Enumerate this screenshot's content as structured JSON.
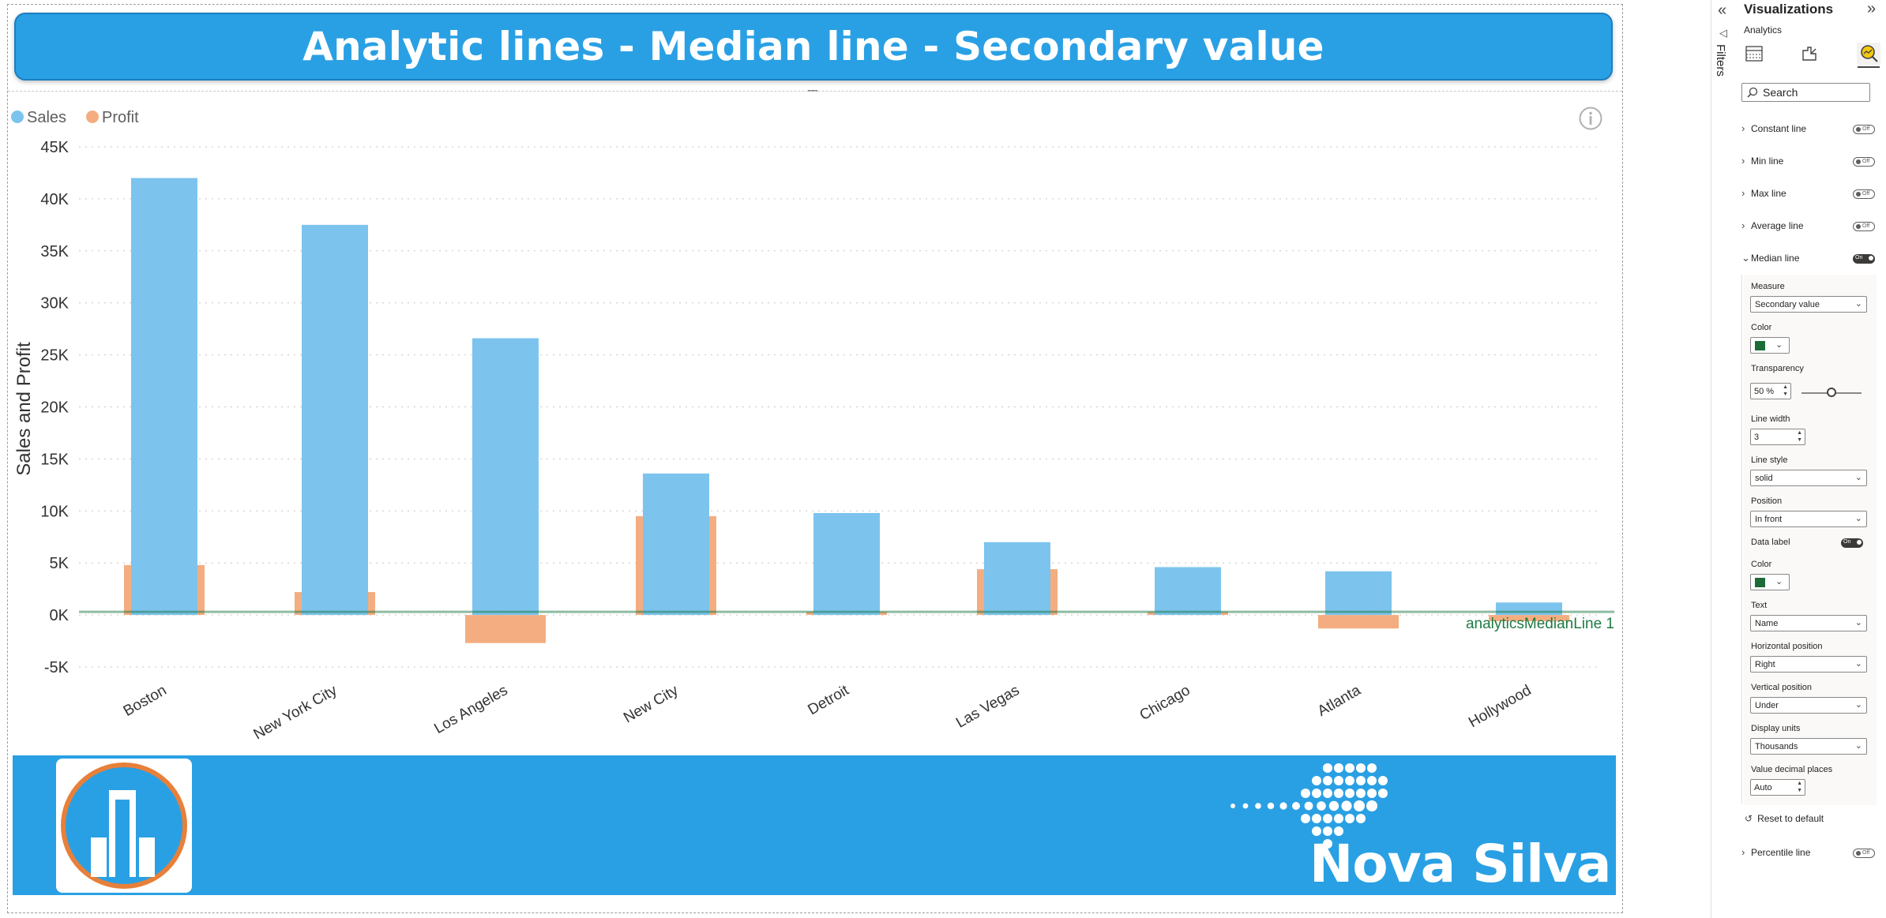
{
  "report": {
    "title": "Analytic lines - Median line - Secondary value",
    "brand_name": "Nova Silva",
    "accent_color": "#2aa0e4"
  },
  "chart_data": {
    "type": "bar",
    "categories": [
      "Boston",
      "New York City",
      "Los Angeles",
      "New City",
      "Detroit",
      "Las Vegas",
      "Chicago",
      "Atlanta",
      "Hollywood"
    ],
    "series": [
      {
        "name": "Sales",
        "color": "#7cc4ee",
        "values": [
          42000,
          37500,
          26600,
          13600,
          9800,
          7000,
          4600,
          4200,
          1200
        ]
      },
      {
        "name": "Profit",
        "color": "#f4ad80",
        "values": [
          4800,
          2200,
          -2700,
          9500,
          300,
          4400,
          300,
          -1300,
          -600
        ]
      }
    ],
    "ylabel": "Sales and Profit",
    "ylim": [
      -5000,
      45000
    ],
    "yticks": [
      -5000,
      0,
      5000,
      10000,
      15000,
      20000,
      25000,
      30000,
      35000,
      40000,
      45000
    ],
    "ytick_labels": [
      "-5K",
      "0K",
      "5K",
      "10K",
      "15K",
      "20K",
      "25K",
      "30K",
      "35K",
      "40K",
      "45K"
    ],
    "grid": true,
    "legend_position": "top-left",
    "median_line": {
      "label": "analyticsMedianLine 1",
      "value": 300,
      "color": "#1e7a45"
    }
  },
  "filters": {
    "label": "Filters"
  },
  "viz_pane": {
    "title": "Visualizations",
    "subtitle": "Analytics",
    "tabs": [
      "build-visual-icon",
      "format-visual-icon",
      "analytics-icon"
    ],
    "search_placeholder": "Search",
    "sections": [
      {
        "label": "Constant line",
        "state": "Off"
      },
      {
        "label": "Min line",
        "state": "Off"
      },
      {
        "label": "Max line",
        "state": "Off"
      },
      {
        "label": "Average line",
        "state": "Off"
      },
      {
        "label": "Median line",
        "state": "On"
      }
    ],
    "median": {
      "measure_label": "Measure",
      "measure_value": "Secondary value",
      "color_label": "Color",
      "line_color": "#1e6b3a",
      "transparency_label": "Transparency",
      "transparency_value": "50 %",
      "transparency_level": 0.5,
      "line_width_label": "Line width",
      "line_width_value": "3",
      "line_style_label": "Line style",
      "line_style_value": "solid",
      "position_label": "Position",
      "position_value": "In front",
      "data_label_label": "Data label",
      "data_label_state": "On",
      "label_color_label": "Color",
      "label_color": "#1e6b3a",
      "text_label": "Text",
      "text_value": "Name",
      "hpos_label": "Horizontal position",
      "hpos_value": "Right",
      "vpos_label": "Vertical position",
      "vpos_value": "Under",
      "units_label": "Display units",
      "units_value": "Thousands",
      "decimals_label": "Value decimal places",
      "decimals_value": "Auto"
    },
    "reset_label": "Reset to default",
    "percentile": {
      "label": "Percentile line",
      "state": "Off"
    }
  }
}
